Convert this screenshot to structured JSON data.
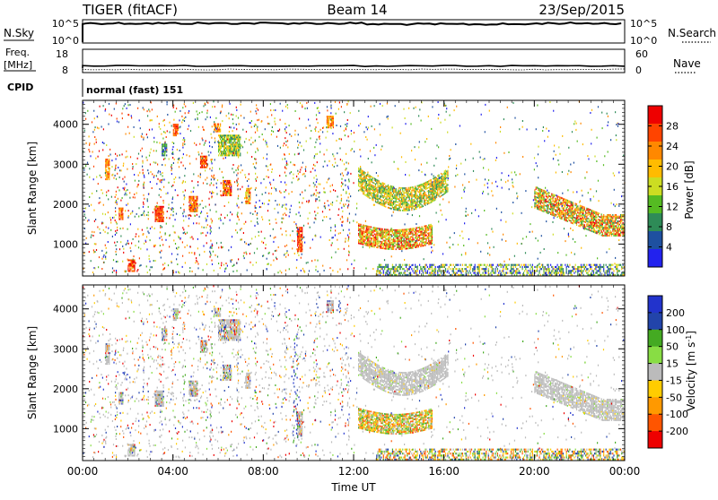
{
  "header": {
    "radar": "TIGER (fitACF)",
    "beam": "Beam 14",
    "date": "23/Sep/2015"
  },
  "status_panels": {
    "nsky_label": "N.Sky",
    "nsky_ticks": [
      "10^5",
      "10^0"
    ],
    "nsearch_label": "N.Search",
    "nsearch_ticks": [
      "10^5",
      "10^0"
    ],
    "freq_label_1": "Freq.",
    "freq_label_2": "[MHz]",
    "freq_ticks": [
      "18",
      "8"
    ],
    "nave_label": "Nave",
    "nave_ticks": [
      "60",
      "0"
    ],
    "cpid_label": "CPID",
    "cpid_text": "normal (fast) 151"
  },
  "colors": {
    "power": [
      "#2222ee",
      "#1e50a0",
      "#2e8b57",
      "#55bb22",
      "#ccdd22",
      "#ffbb00",
      "#ff8800",
      "#ff4400",
      "#ee0000"
    ],
    "velocity": [
      "#ee0000",
      "#ff5500",
      "#ff9900",
      "#ffcc00",
      "#bbbbbb",
      "#88dd44",
      "#44aa22",
      "#2244aa",
      "#2233cc"
    ],
    "ground_scatter": "#bbbbbb"
  },
  "chart_data": [
    {
      "type": "heatmap",
      "panel": "power",
      "ylabel": "Slant Range [km]",
      "ylim": [
        200,
        4600
      ],
      "y_ticks": [
        "1000",
        "2000",
        "3000",
        "4000"
      ],
      "x_ticks": [
        "00:00",
        "04:00",
        "08:00",
        "12:00",
        "16:00",
        "20:00",
        "00:00"
      ],
      "xlim_hours": [
        0,
        24
      ],
      "colorbar": {
        "label": "Power [dB]",
        "ticks": [
          "4",
          "8",
          "12",
          "16",
          "20",
          "24",
          "28"
        ],
        "range": [
          0,
          30
        ]
      },
      "features": [
        {
          "name": "morning patches",
          "t": [
            1.5,
            7.5
          ],
          "range_km": [
            300,
            4400
          ],
          "power_db": [
            4,
            28
          ]
        },
        {
          "name": "evening echo band upper",
          "t": [
            12.2,
            16.2
          ],
          "range_km": [
            1900,
            2700
          ],
          "power_db": [
            12,
            24
          ]
        },
        {
          "name": "evening echo band lower",
          "t": [
            12.2,
            15.5
          ],
          "range_km": [
            900,
            1500
          ],
          "power_db": [
            16,
            30
          ]
        },
        {
          "name": "late echo band",
          "t": [
            20.0,
            24.0
          ],
          "range_km": [
            1200,
            2300
          ],
          "power_db": [
            12,
            28
          ]
        },
        {
          "name": "near range clutter",
          "t": [
            13.0,
            24.0
          ],
          "range_km": [
            200,
            500
          ],
          "power_db": [
            4,
            20
          ]
        }
      ]
    },
    {
      "type": "heatmap",
      "panel": "velocity",
      "ylabel": "Slant Range [km]",
      "ylim": [
        200,
        4600
      ],
      "y_ticks": [
        "1000",
        "2000",
        "3000",
        "4000"
      ],
      "x_ticks": [
        "00:00",
        "04:00",
        "08:00",
        "12:00",
        "16:00",
        "20:00",
        "00:00"
      ],
      "xlabel": "Time UT",
      "xlim_hours": [
        0,
        24
      ],
      "colorbar": {
        "label": "Velocity [m s-1]",
        "ticks": [
          "200",
          "100",
          "50",
          "15",
          "-15",
          "-50",
          "-100",
          "-200"
        ],
        "range": [
          -250,
          250
        ]
      },
      "features": [
        {
          "name": "ground scatter upper band",
          "t": [
            12.2,
            16.2
          ],
          "range_km": [
            1900,
            2700
          ],
          "velocity": 0
        },
        {
          "name": "ionospheric band lower",
          "t": [
            12.2,
            15.5
          ],
          "range_km": [
            900,
            1500
          ],
          "velocity": [
            -100,
            50
          ]
        },
        {
          "name": "late ground scatter",
          "t": [
            20.0,
            24.0
          ],
          "range_km": [
            1200,
            2300
          ],
          "velocity": 0
        },
        {
          "name": "positive velocity column",
          "t": [
            9.2,
            9.6
          ],
          "range_km": [
            500,
            3400
          ],
          "velocity": 200
        }
      ]
    }
  ]
}
